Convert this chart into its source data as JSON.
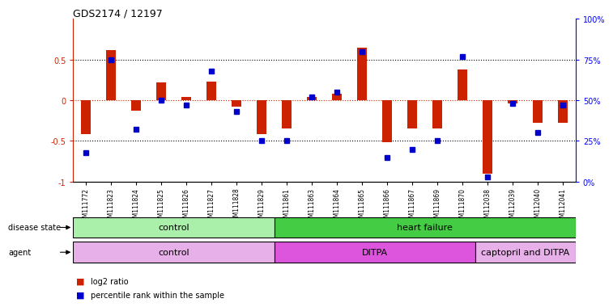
{
  "title": "GDS2174 / 12197",
  "samples": [
    "GSM111772",
    "GSM111823",
    "GSM111824",
    "GSM111825",
    "GSM111826",
    "GSM111827",
    "GSM111828",
    "GSM111829",
    "GSM111861",
    "GSM111863",
    "GSM111864",
    "GSM111865",
    "GSM111866",
    "GSM111867",
    "GSM111869",
    "GSM111870",
    "GSM112038",
    "GSM112039",
    "GSM112040",
    "GSM112041"
  ],
  "log2_ratio": [
    -0.42,
    0.62,
    -0.13,
    0.22,
    0.04,
    0.23,
    -0.08,
    -0.42,
    -0.35,
    0.04,
    0.08,
    0.65,
    -0.52,
    -0.35,
    -0.35,
    0.38,
    -0.9,
    -0.04,
    -0.28,
    -0.28
  ],
  "pct_rank": [
    18,
    75,
    32,
    50,
    47,
    68,
    43,
    25,
    25,
    52,
    55,
    80,
    15,
    20,
    25,
    77,
    3,
    48,
    30,
    47
  ],
  "disease_state_groups": [
    {
      "label": "control",
      "start": 0,
      "end": 7,
      "color": "#aaf0aa"
    },
    {
      "label": "heart failure",
      "start": 8,
      "end": 19,
      "color": "#44cc44"
    }
  ],
  "agent_groups": [
    {
      "label": "control",
      "start": 0,
      "end": 7,
      "color": "#e8b0e8"
    },
    {
      "label": "DITPA",
      "start": 8,
      "end": 15,
      "color": "#dd55dd"
    },
    {
      "label": "captopril and DITPA",
      "start": 16,
      "end": 19,
      "color": "#e8b0e8"
    }
  ],
  "left_yticks": [
    -1,
    -0.5,
    0,
    0.5
  ],
  "left_yticklabels": [
    "-1",
    "-0.5",
    "0",
    "0.5"
  ],
  "right_yticks": [
    0,
    25,
    50,
    75,
    100
  ],
  "right_yticklabels": [
    "0%",
    "25%",
    "50%",
    "75%",
    "100%"
  ],
  "bar_color": "#cc2200",
  "dot_color": "#0000cc",
  "zero_line_color": "#cc2200",
  "background_color": "#ffffff",
  "legend_items": [
    {
      "label": "log2 ratio",
      "color": "#cc2200"
    },
    {
      "label": "percentile rank within the sample",
      "color": "#0000cc"
    }
  ]
}
